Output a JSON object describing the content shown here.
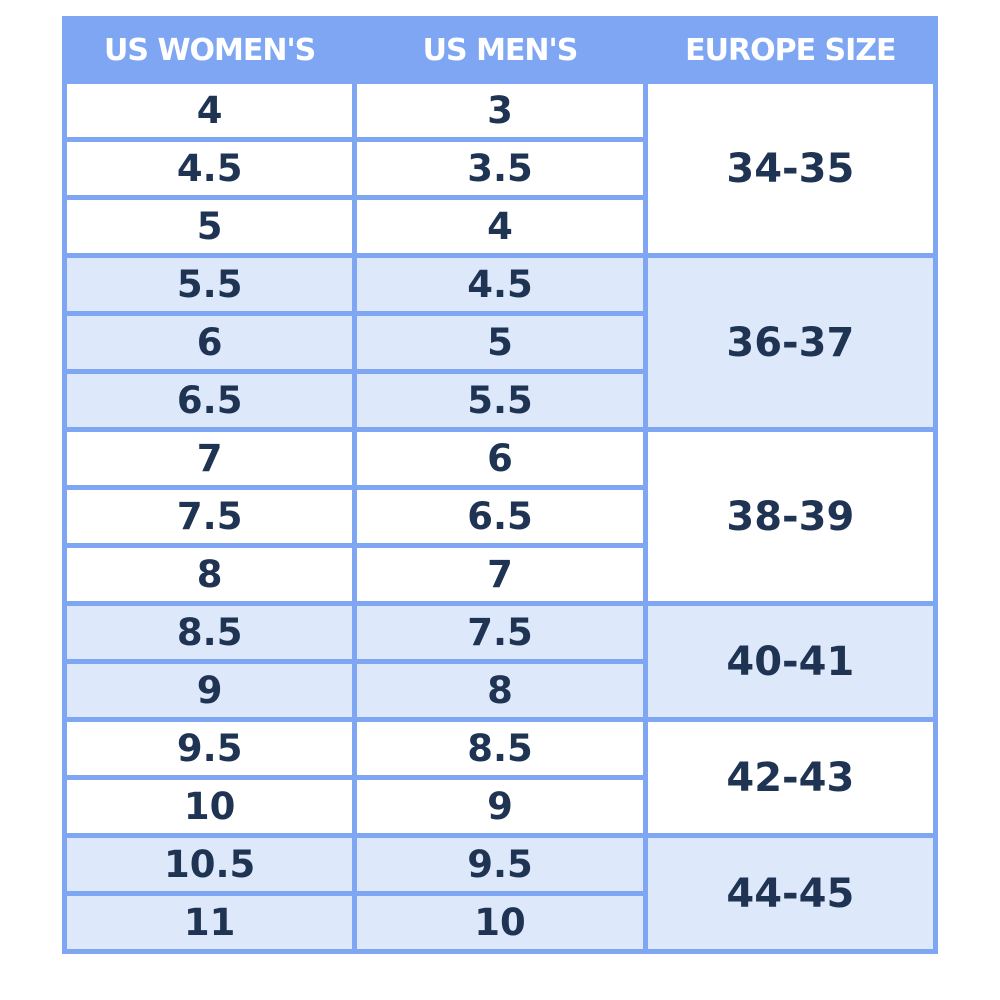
{
  "header": [
    "US WOMEN'S",
    "US MEN'S",
    "EUROPE SIZE"
  ],
  "groups": [
    {
      "europe": "34-35",
      "rows": [
        [
          "4",
          "3"
        ],
        [
          "4.5",
          "3.5"
        ],
        [
          "5",
          "4"
        ]
      ]
    },
    {
      "europe": "36-37",
      "rows": [
        [
          "5.5",
          "4.5"
        ],
        [
          "6",
          "5"
        ],
        [
          "6.5",
          "5.5"
        ]
      ]
    },
    {
      "europe": "38-39",
      "rows": [
        [
          "7",
          "6"
        ],
        [
          "7.5",
          "6.5"
        ],
        [
          "8",
          "7"
        ]
      ]
    },
    {
      "europe": "40-41",
      "rows": [
        [
          "8.5",
          "7.5"
        ],
        [
          "9",
          "8"
        ]
      ]
    },
    {
      "europe": "42-43",
      "rows": [
        [
          "9.5",
          "8.5"
        ],
        [
          "10",
          "9"
        ]
      ]
    },
    {
      "europe": "44-45",
      "rows": [
        [
          "10.5",
          "9.5"
        ],
        [
          "11",
          "10"
        ]
      ]
    }
  ]
}
